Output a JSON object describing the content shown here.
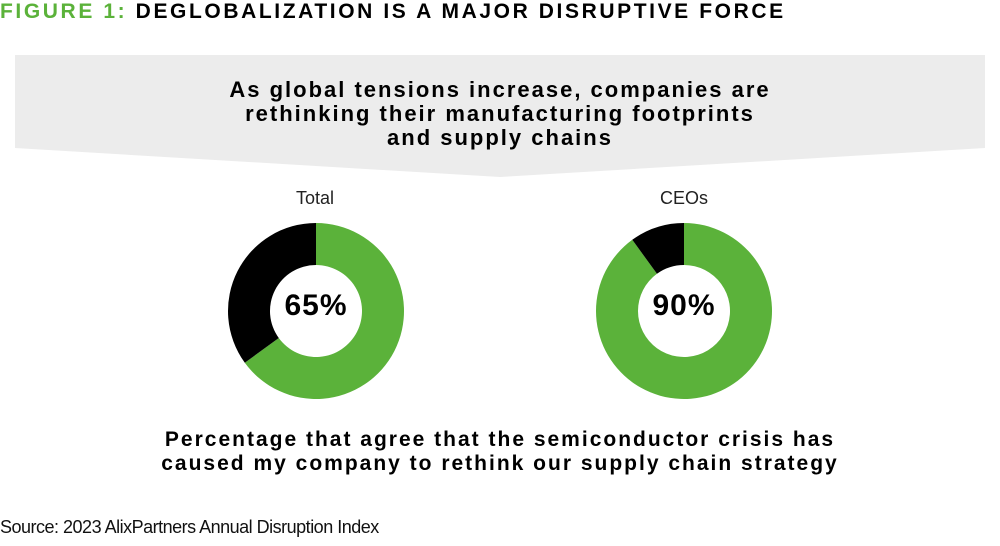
{
  "figure": {
    "title_prefix": "FIGURE 1:",
    "title_text": " DEGLOBALIZATION IS A MAJOR DISRUPTIVE FORCE"
  },
  "banner": {
    "lines": [
      "As global tensions increase, companies are",
      "rethinking their manufacturing footprints",
      "and supply chains"
    ]
  },
  "colors": {
    "accent_green": "#5bb23a",
    "remainder": "#000000",
    "banner_bg": "#ececec"
  },
  "chart_data": [
    {
      "type": "pie",
      "title": "Total",
      "center_label": "65%",
      "slices": [
        {
          "label": "Agree",
          "value": 65,
          "color": "#5bb23a"
        },
        {
          "label": "Other",
          "value": 35,
          "color": "#000000"
        }
      ]
    },
    {
      "type": "pie",
      "title": "CEOs",
      "center_label": "90%",
      "slices": [
        {
          "label": "Agree",
          "value": 90,
          "color": "#5bb23a"
        },
        {
          "label": "Other",
          "value": 10,
          "color": "#000000"
        }
      ]
    }
  ],
  "caption": {
    "lines": [
      "Percentage that agree that the semiconductor crisis has",
      "caused my company to rethink our supply chain strategy"
    ]
  },
  "source": "Source: 2023 AlixPartners Annual Disruption Index"
}
